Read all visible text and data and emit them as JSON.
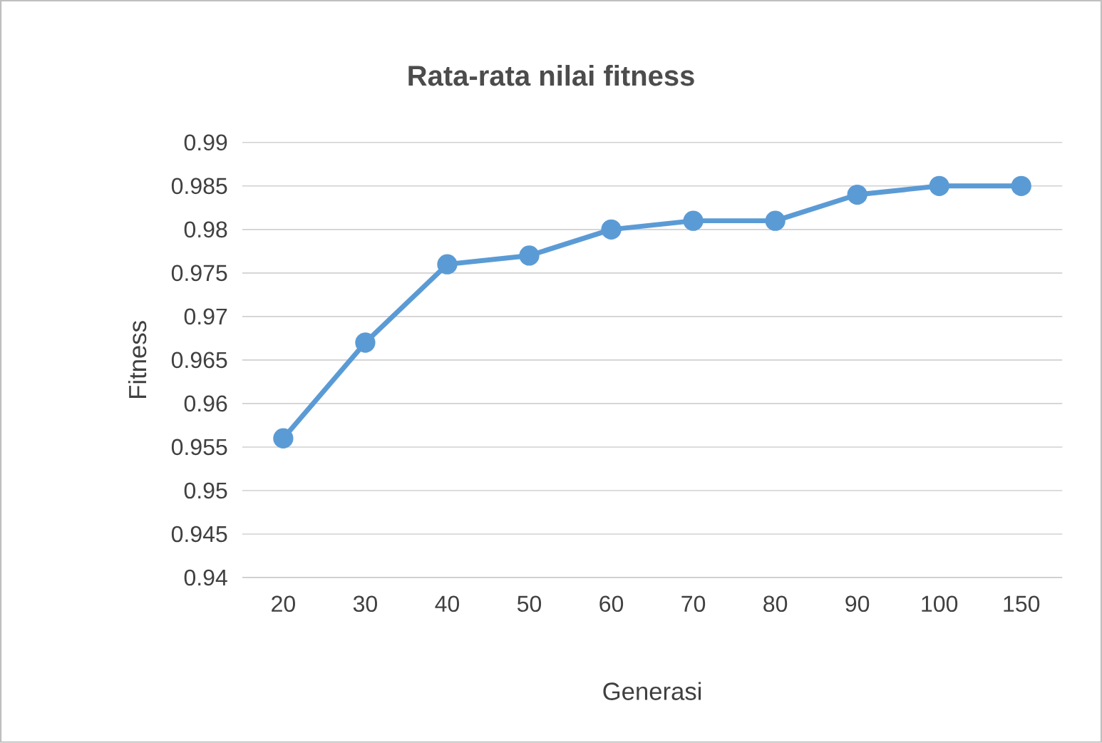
{
  "chart_data": {
    "type": "line",
    "title": "Rata-rata nilai fitness",
    "xlabel": "Generasi",
    "ylabel": "Fitness",
    "categories": [
      "20",
      "30",
      "40",
      "50",
      "60",
      "70",
      "80",
      "90",
      "100",
      "150"
    ],
    "series": [
      {
        "color": "#5b9bd5",
        "values": [
          0.956,
          0.967,
          0.976,
          0.977,
          0.98,
          0.981,
          0.981,
          0.984,
          0.985,
          0.985
        ]
      }
    ],
    "ylim": [
      0.94,
      0.99
    ],
    "yticks": [
      0.94,
      0.945,
      0.95,
      0.955,
      0.96,
      0.965,
      0.97,
      0.975,
      0.98,
      0.985,
      0.99
    ],
    "grid": "y",
    "marker": "circle",
    "line_style": "solid"
  }
}
